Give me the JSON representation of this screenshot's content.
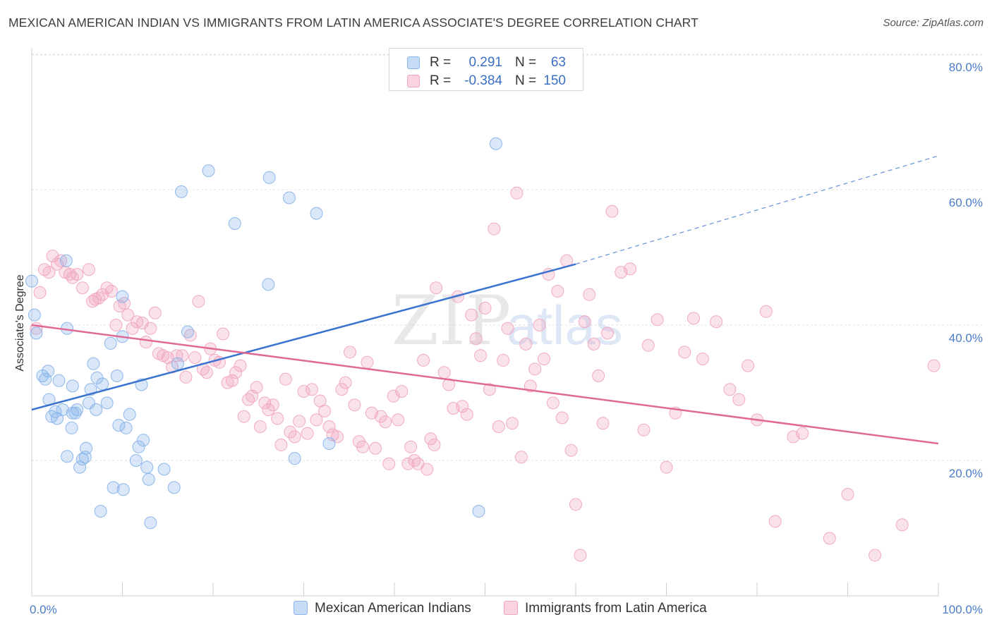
{
  "title": "MEXICAN AMERICAN INDIAN VS IMMIGRANTS FROM LATIN AMERICA ASSOCIATE'S DEGREE CORRELATION CHART",
  "source": "Source: ZipAtlas.com",
  "watermark": {
    "zip": "ZIP",
    "atlas": "atlas"
  },
  "colors": {
    "blue": "#8ab4ea",
    "blue_line": "#3a74cf",
    "pink": "#f0a6c0",
    "pink_line": "#e06a96",
    "axis_text": "#4a7cc8"
  },
  "legend": {
    "rows": [
      {
        "r_label": "R =",
        "r_value": "0.291",
        "n_label": "N =",
        "n_value": "63"
      },
      {
        "r_label": "R =",
        "r_value": "-0.384",
        "n_label": "N =",
        "n_value": "150"
      }
    ]
  },
  "chart_data": {
    "type": "scatter",
    "xlabel": "",
    "ylabel": "Associate's Degree",
    "xlim": [
      0,
      100
    ],
    "ylim": [
      0,
      82
    ],
    "y_ticks": [
      {
        "value": 20,
        "label": "20.0%"
      },
      {
        "value": 40,
        "label": "40.0%"
      },
      {
        "value": 60,
        "label": "60.0%"
      },
      {
        "value": 80,
        "label": "80.0%"
      }
    ],
    "x_ticks": [
      {
        "value": 0,
        "label": "0.0%"
      },
      {
        "value": 100,
        "label": "100.0%"
      }
    ],
    "grid": true,
    "legend_position": "top-center",
    "series": [
      {
        "name": "Mexican American Indians",
        "color": "#8ab4ea",
        "trend": {
          "x": [
            0,
            60
          ],
          "y": [
            27.5,
            49.0
          ],
          "dashed_to": [
            100,
            65.0
          ]
        },
        "points": [
          [
            0.3,
            41.5
          ],
          [
            0.5,
            38.8
          ],
          [
            1.2,
            32.5
          ],
          [
            1.8,
            33.2
          ],
          [
            1.5,
            32.0
          ],
          [
            1.9,
            29.0
          ],
          [
            2.2,
            26.5
          ],
          [
            2.6,
            27.2
          ],
          [
            2.8,
            26.2
          ],
          [
            3.0,
            31.8
          ],
          [
            3.4,
            27.5
          ],
          [
            3.9,
            20.6
          ],
          [
            3.8,
            49.5
          ],
          [
            3.9,
            39.5
          ],
          [
            4.4,
            24.8
          ],
          [
            4.5,
            31.0
          ],
          [
            4.5,
            27.0
          ],
          [
            4.8,
            27.0
          ],
          [
            5.0,
            27.5
          ],
          [
            5.3,
            19.0
          ],
          [
            5.6,
            20.2
          ],
          [
            5.9,
            20.5
          ],
          [
            6.0,
            21.8
          ],
          [
            6.3,
            28.5
          ],
          [
            6.5,
            30.5
          ],
          [
            6.8,
            34.3
          ],
          [
            7.1,
            27.5
          ],
          [
            7.2,
            32.2
          ],
          [
            7.6,
            12.5
          ],
          [
            7.8,
            31.3
          ],
          [
            8.3,
            28.5
          ],
          [
            8.7,
            37.3
          ],
          [
            9.0,
            16.0
          ],
          [
            9.4,
            32.5
          ],
          [
            9.6,
            25.2
          ],
          [
            10.0,
            44.2
          ],
          [
            10.0,
            38.3
          ],
          [
            10.1,
            15.7
          ],
          [
            10.4,
            24.8
          ],
          [
            10.8,
            26.8
          ],
          [
            11.5,
            20.0
          ],
          [
            11.8,
            22.0
          ],
          [
            12.1,
            31.2
          ],
          [
            12.3,
            23.0
          ],
          [
            12.7,
            19.0
          ],
          [
            12.9,
            17.2
          ],
          [
            13.1,
            10.8
          ],
          [
            14.6,
            18.7
          ],
          [
            15.7,
            16.0
          ],
          [
            16.1,
            34.3
          ],
          [
            16.5,
            59.7
          ],
          [
            17.2,
            39.0
          ],
          [
            19.5,
            62.8
          ],
          [
            22.4,
            55.0
          ],
          [
            26.1,
            46.0
          ],
          [
            26.2,
            61.8
          ],
          [
            28.4,
            58.8
          ],
          [
            29.0,
            20.3
          ],
          [
            31.4,
            56.5
          ],
          [
            32.8,
            22.5
          ],
          [
            49.3,
            12.5
          ],
          [
            51.2,
            66.8
          ],
          [
            0.0,
            46.5
          ]
        ]
      },
      {
        "name": "Immigrants from Latin America",
        "color": "#f0a6c0",
        "trend": {
          "x": [
            0,
            100
          ],
          "y": [
            40.0,
            22.5
          ]
        },
        "points": [
          [
            0.5,
            39.5
          ],
          [
            0.9,
            44.8
          ],
          [
            1.4,
            48.2
          ],
          [
            1.9,
            47.8
          ],
          [
            2.3,
            50.2
          ],
          [
            2.8,
            49.0
          ],
          [
            3.2,
            49.5
          ],
          [
            3.7,
            47.8
          ],
          [
            4.2,
            47.5
          ],
          [
            4.5,
            47.0
          ],
          [
            5.0,
            47.5
          ],
          [
            5.6,
            45.5
          ],
          [
            6.3,
            48.2
          ],
          [
            6.7,
            43.5
          ],
          [
            7.0,
            43.8
          ],
          [
            7.4,
            44.0
          ],
          [
            7.8,
            44.5
          ],
          [
            8.3,
            45.5
          ],
          [
            8.8,
            45.0
          ],
          [
            9.3,
            40.0
          ],
          [
            9.7,
            42.8
          ],
          [
            10.2,
            43.2
          ],
          [
            10.6,
            41.5
          ],
          [
            11.1,
            39.5
          ],
          [
            11.6,
            40.5
          ],
          [
            12.2,
            40.3
          ],
          [
            12.6,
            37.5
          ],
          [
            13.1,
            39.5
          ],
          [
            13.6,
            41.8
          ],
          [
            14.0,
            35.8
          ],
          [
            14.5,
            35.5
          ],
          [
            15.0,
            35.2
          ],
          [
            15.5,
            33.8
          ],
          [
            16.0,
            35.5
          ],
          [
            16.6,
            35.5
          ],
          [
            17.0,
            32.3
          ],
          [
            17.5,
            38.5
          ],
          [
            18.0,
            35.2
          ],
          [
            18.4,
            43.5
          ],
          [
            18.9,
            33.5
          ],
          [
            19.3,
            33.0
          ],
          [
            19.7,
            36.5
          ],
          [
            20.2,
            34.8
          ],
          [
            20.7,
            34.5
          ],
          [
            21.1,
            38.7
          ],
          [
            21.6,
            31.5
          ],
          [
            22.1,
            31.8
          ],
          [
            22.5,
            33.0
          ],
          [
            23.0,
            34.0
          ],
          [
            23.4,
            26.5
          ],
          [
            23.9,
            29.0
          ],
          [
            24.3,
            29.5
          ],
          [
            24.8,
            30.8
          ],
          [
            25.2,
            25.0
          ],
          [
            25.7,
            28.5
          ],
          [
            26.1,
            27.5
          ],
          [
            26.6,
            28.2
          ],
          [
            27.1,
            26.2
          ],
          [
            27.5,
            22.3
          ],
          [
            28.0,
            32.0
          ],
          [
            28.5,
            24.2
          ],
          [
            29.0,
            23.5
          ],
          [
            29.5,
            25.8
          ],
          [
            30.0,
            30.2
          ],
          [
            30.4,
            24.0
          ],
          [
            30.9,
            30.5
          ],
          [
            31.4,
            26.0
          ],
          [
            31.8,
            28.8
          ],
          [
            32.3,
            27.3
          ],
          [
            32.8,
            25.0
          ],
          [
            33.2,
            23.8
          ],
          [
            33.7,
            23.5
          ],
          [
            34.2,
            30.5
          ],
          [
            34.6,
            31.5
          ],
          [
            35.1,
            36.0
          ],
          [
            35.6,
            28.2
          ],
          [
            36.1,
            22.8
          ],
          [
            36.5,
            22.0
          ],
          [
            37.0,
            34.5
          ],
          [
            37.5,
            27.0
          ],
          [
            37.9,
            21.8
          ],
          [
            38.5,
            26.5
          ],
          [
            39.0,
            25.7
          ],
          [
            39.4,
            19.5
          ],
          [
            39.9,
            29.5
          ],
          [
            40.4,
            26.0
          ],
          [
            40.8,
            30.2
          ],
          [
            41.5,
            19.5
          ],
          [
            41.8,
            22.0
          ],
          [
            42.2,
            20.0
          ],
          [
            42.6,
            19.5
          ],
          [
            43.2,
            34.8
          ],
          [
            43.6,
            18.7
          ],
          [
            44.0,
            23.2
          ],
          [
            44.4,
            22.3
          ],
          [
            44.6,
            45.5
          ],
          [
            45.5,
            33.0
          ],
          [
            46.0,
            31.2
          ],
          [
            46.5,
            27.7
          ],
          [
            47.0,
            44.2
          ],
          [
            47.5,
            28.0
          ],
          [
            48.0,
            26.8
          ],
          [
            48.5,
            41.5
          ],
          [
            49.0,
            38.0
          ],
          [
            49.5,
            35.5
          ],
          [
            50.0,
            42.5
          ],
          [
            50.5,
            30.5
          ],
          [
            51.0,
            54.2
          ],
          [
            51.5,
            25.0
          ],
          [
            52.0,
            34.8
          ],
          [
            52.5,
            39.5
          ],
          [
            53.0,
            25.5
          ],
          [
            53.5,
            59.5
          ],
          [
            54.0,
            20.5
          ],
          [
            54.5,
            37.2
          ],
          [
            55.0,
            31.0
          ],
          [
            55.5,
            33.5
          ],
          [
            56.0,
            40.0
          ],
          [
            56.5,
            35.0
          ],
          [
            57.0,
            47.5
          ],
          [
            57.5,
            28.5
          ],
          [
            58.0,
            45.0
          ],
          [
            58.5,
            26.3
          ],
          [
            59.0,
            49.5
          ],
          [
            59.5,
            21.5
          ],
          [
            60.0,
            13.5
          ],
          [
            60.5,
            6.0
          ],
          [
            61.0,
            40.5
          ],
          [
            61.5,
            44.5
          ],
          [
            62.0,
            37.2
          ],
          [
            62.5,
            32.5
          ],
          [
            63.0,
            25.5
          ],
          [
            63.5,
            38.8
          ],
          [
            64.0,
            56.8
          ],
          [
            65.0,
            47.8
          ],
          [
            66.0,
            48.3
          ],
          [
            67.5,
            24.5
          ],
          [
            68.0,
            37.0
          ],
          [
            69.0,
            40.8
          ],
          [
            70.0,
            19.0
          ],
          [
            71.0,
            27.0
          ],
          [
            72.0,
            36.0
          ],
          [
            73.0,
            41.0
          ],
          [
            74.0,
            35.0
          ],
          [
            75.5,
            40.5
          ],
          [
            77.0,
            30.5
          ],
          [
            78.0,
            29.0
          ],
          [
            79.0,
            34.0
          ],
          [
            80.0,
            26.0
          ],
          [
            81.0,
            42.0
          ],
          [
            82.0,
            11.0
          ],
          [
            84.0,
            23.5
          ],
          [
            85.0,
            24.0
          ],
          [
            88.0,
            8.5
          ],
          [
            90.0,
            15.0
          ],
          [
            93.0,
            6.0
          ],
          [
            96.0,
            10.5
          ],
          [
            99.5,
            34.0
          ]
        ]
      }
    ]
  },
  "bottom_legend": [
    {
      "label": "Mexican American Indians"
    },
    {
      "label": "Immigrants from Latin America"
    }
  ]
}
